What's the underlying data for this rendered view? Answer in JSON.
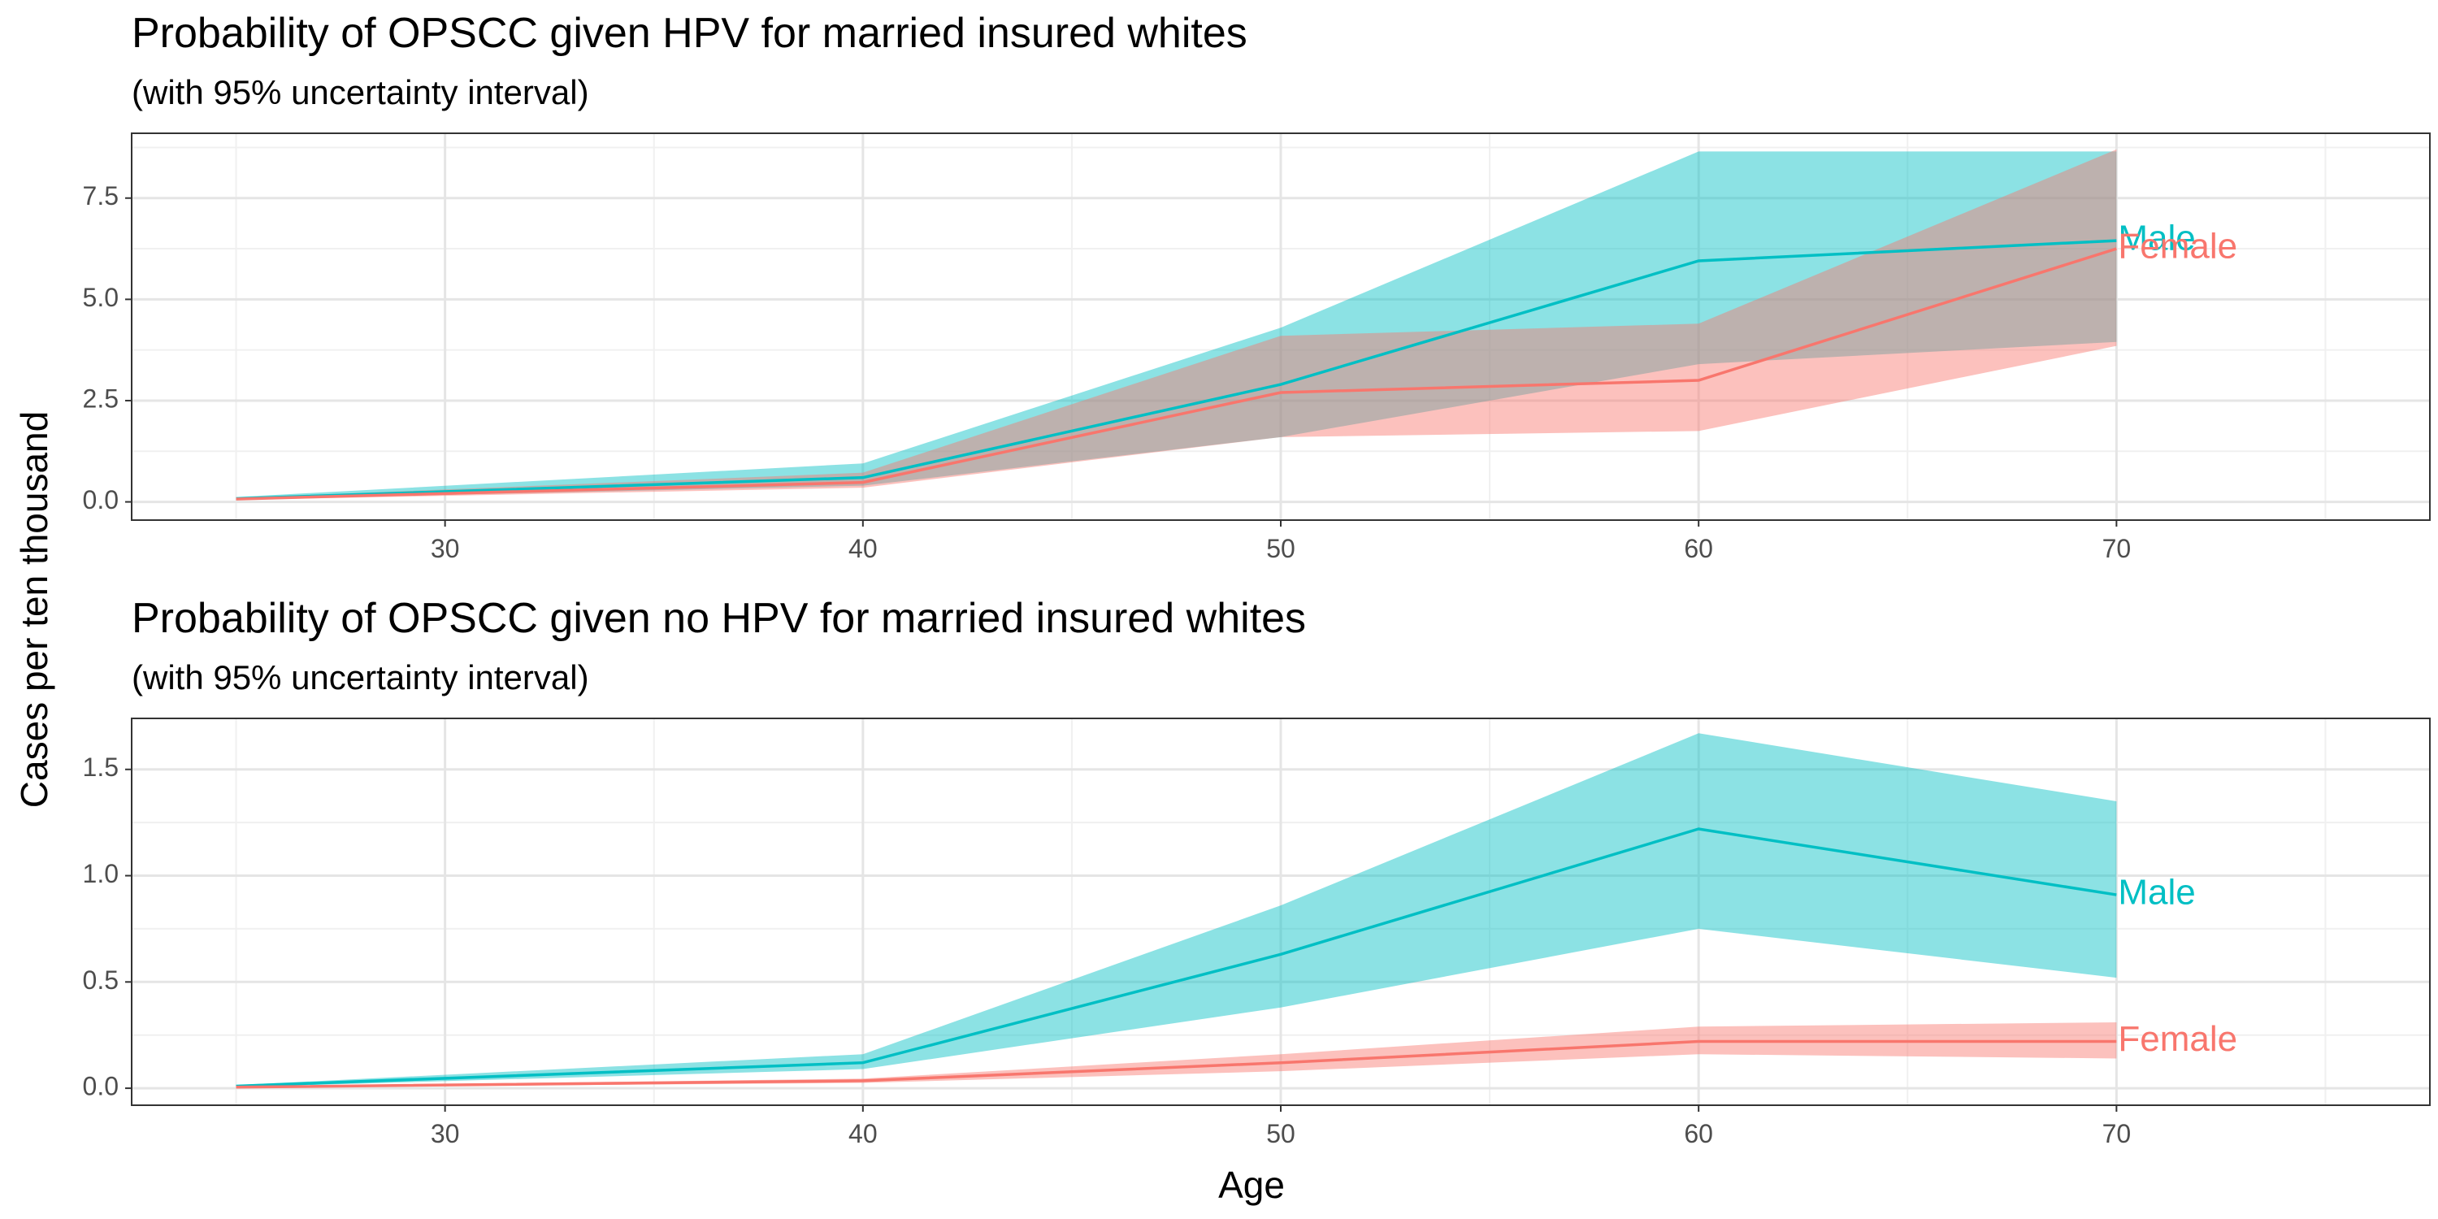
{
  "figure": {
    "xlabel": "Age",
    "ylabel": "Cases per ten thousand"
  },
  "colors": {
    "Female": "#F8766D",
    "Male": "#00BFC4"
  },
  "chart_data": [
    {
      "type": "area",
      "title": "Probability of OPSCC given HPV for married insured whites",
      "subtitle": "(with 95% uncertainty interval)",
      "xlim": [
        22.5,
        77.5
      ],
      "ylim": [
        -0.45,
        9.1
      ],
      "xticks": [
        "30",
        "40",
        "50",
        "60",
        "70"
      ],
      "yticks": [
        "0.0",
        "2.5",
        "5.0",
        "7.5"
      ],
      "ytick_values": [
        0,
        2.5,
        5,
        7.5
      ],
      "x": [
        25,
        40,
        50,
        60,
        70
      ],
      "grid": true,
      "series": [
        {
          "name": "Male",
          "values": [
            0.08,
            0.6,
            2.9,
            5.95,
            6.45
          ],
          "lower": [
            0.06,
            0.4,
            1.6,
            3.4,
            3.95
          ],
          "upper": [
            0.12,
            0.95,
            4.3,
            8.65,
            8.65
          ]
        },
        {
          "name": "Female",
          "values": [
            0.07,
            0.48,
            2.7,
            3.0,
            6.25
          ],
          "lower": [
            0.05,
            0.35,
            1.6,
            1.75,
            3.85
          ],
          "upper": [
            0.1,
            0.72,
            4.1,
            4.4,
            8.7
          ]
        }
      ]
    },
    {
      "type": "area",
      "title": "Probability of OPSCC given no HPV for married insured whites",
      "subtitle": "(with 95% uncertainty interval)",
      "xlim": [
        22.5,
        77.5
      ],
      "ylim": [
        -0.08,
        1.74
      ],
      "xticks": [
        "30",
        "40",
        "50",
        "60",
        "70"
      ],
      "yticks": [
        "0.0",
        "0.5",
        "1.0",
        "1.5"
      ],
      "ytick_values": [
        0,
        0.5,
        1.0,
        1.5
      ],
      "x": [
        25,
        40,
        50,
        60,
        70
      ],
      "grid": true,
      "series": [
        {
          "name": "Male",
          "values": [
            0.01,
            0.12,
            0.63,
            1.22,
            0.91
          ],
          "lower": [
            0.005,
            0.09,
            0.38,
            0.75,
            0.52
          ],
          "upper": [
            0.015,
            0.16,
            0.86,
            1.67,
            1.35
          ]
        },
        {
          "name": "Female",
          "values": [
            0.005,
            0.035,
            0.12,
            0.22,
            0.22
          ],
          "lower": [
            0.003,
            0.025,
            0.08,
            0.16,
            0.14
          ],
          "upper": [
            0.008,
            0.045,
            0.16,
            0.29,
            0.31
          ]
        }
      ]
    }
  ]
}
